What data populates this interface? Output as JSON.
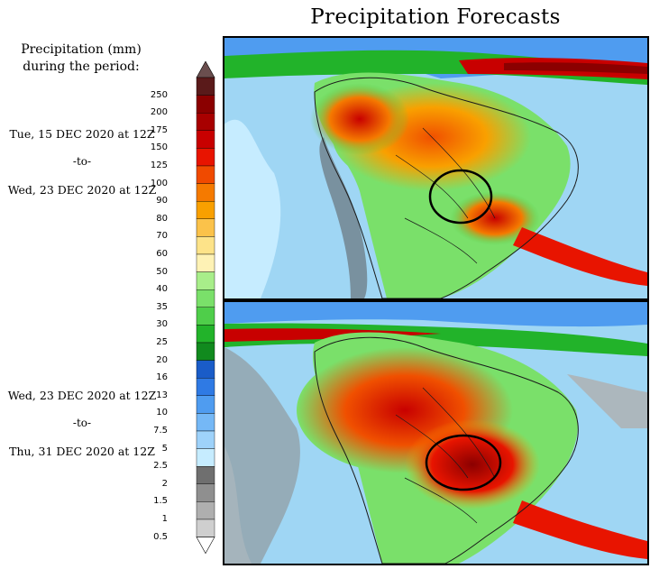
{
  "title": "Precipitation Forecasts",
  "legend": {
    "heading_line1": "Precipitation (mm)",
    "heading_line2": "during the period:",
    "unit": "mm",
    "labels": [
      "250",
      "200",
      "175",
      "150",
      "125",
      "100",
      "90",
      "80",
      "70",
      "60",
      "50",
      "40",
      "35",
      "30",
      "25",
      "20",
      "16",
      "13",
      "10",
      "7.5",
      "5",
      "2.5",
      "2",
      "1.5",
      "1",
      "0.5"
    ],
    "colors": [
      "#5a1a1a",
      "#8b0000",
      "#a80000",
      "#c80000",
      "#e81400",
      "#f04a00",
      "#f57a00",
      "#f9a000",
      "#fbc24a",
      "#fde389",
      "#fef2b5",
      "#a8ee8a",
      "#7ae06a",
      "#4fce4a",
      "#22b32a",
      "#118a1e",
      "#1a5cc8",
      "#2f7ae4",
      "#4f9cf0",
      "#75b8f6",
      "#9ed2fa",
      "#c6ecff",
      "#6f6f6f",
      "#8f8f8f",
      "#afafaf",
      "#cfcfcf"
    ]
  },
  "periods": [
    {
      "start": "Tue, 15 DEC 2020 at 12Z",
      "separator": "-to-",
      "end": "Wed, 23 DEC 2020 at 12Z"
    },
    {
      "start": "Wed, 23 DEC 2020 at 12Z",
      "separator": "-to-",
      "end": "Thu, 31 DEC 2020 at 12Z"
    }
  ],
  "maps": [
    {
      "region": "South America",
      "highlight": "Central-west Brazil"
    },
    {
      "region": "South America",
      "highlight": "Central-west Brazil"
    }
  ]
}
